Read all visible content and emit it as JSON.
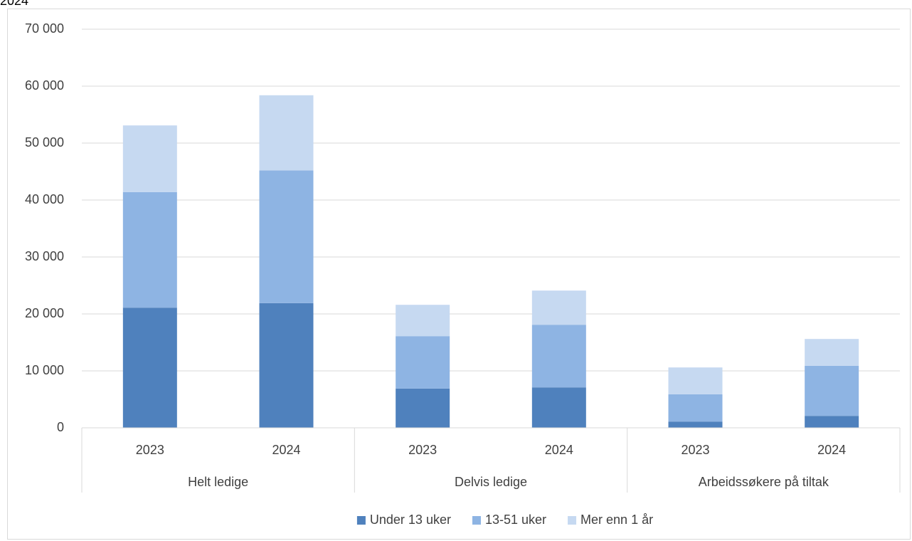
{
  "chart_data": {
    "type": "stacked_bar",
    "title": "2024",
    "groups": [
      "Helt ledige",
      "Delvis ledige",
      "Arbeidssøkere på tiltak"
    ],
    "categories": [
      "2023",
      "2024",
      "2023",
      "2024",
      "2023",
      "2024"
    ],
    "series": [
      {
        "name": "Under 13 uker",
        "color": "#4f81bd",
        "values": [
          21100,
          21900,
          6900,
          7100,
          1100,
          2100
        ]
      },
      {
        "name": "13-51 uker",
        "color": "#8eb4e3",
        "values": [
          20300,
          23300,
          9200,
          11000,
          4800,
          8800
        ]
      },
      {
        "name": "Mer enn 1 år",
        "color": "#c6d9f1",
        "values": [
          11700,
          13200,
          5500,
          6000,
          4700,
          4700
        ]
      }
    ],
    "ylim": [
      0,
      70000
    ],
    "yticks": [
      0,
      {
        "value": 10000,
        "label": "10 000"
      },
      {
        "value": 20000,
        "label": "20 000"
      },
      {
        "value": 30000,
        "label": "30 000"
      },
      {
        "value": 40000,
        "label": "40 000"
      },
      {
        "value": 50000,
        "label": "50 000"
      },
      {
        "value": 60000,
        "label": "60 000"
      },
      {
        "value": 70000,
        "label": "70 000"
      }
    ],
    "grid": true,
    "legend": "bottom"
  }
}
